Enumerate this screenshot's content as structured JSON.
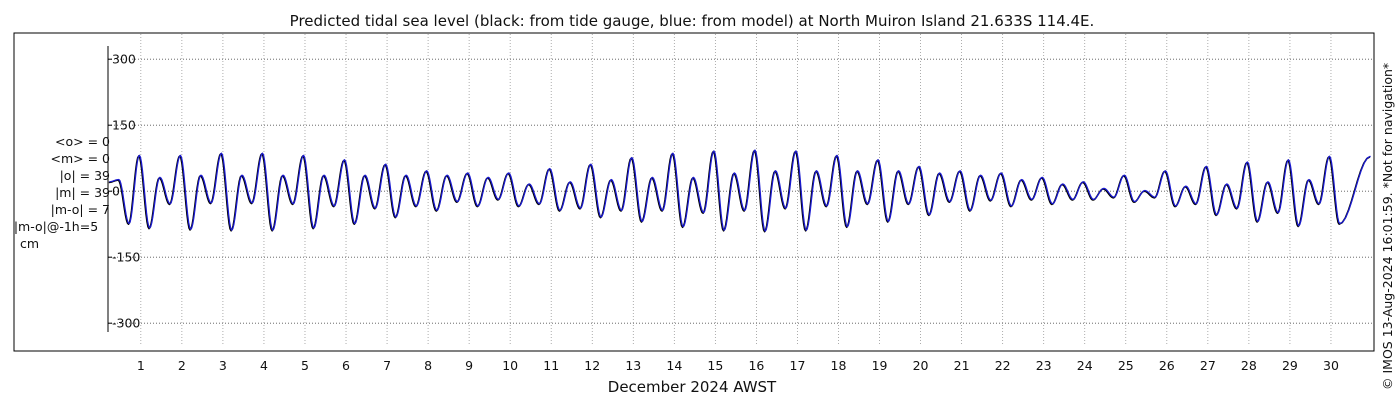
{
  "chart_data": {
    "type": "line",
    "title": "Predicted tidal sea level (black: from tide gauge, blue: from model) at North Muiron Island 21.633S 114.4E.",
    "xlabel": "December 2024 AWST",
    "ylabel": "",
    "ylim": [
      -320,
      330
    ],
    "xlim": [
      0.2,
      31.0
    ],
    "yticks": [
      -300,
      -150,
      0,
      150,
      300
    ],
    "ytick_labels": [
      "-300",
      "-150",
      "0",
      "150",
      "300"
    ],
    "xticks": [
      1,
      2,
      3,
      4,
      5,
      6,
      7,
      8,
      9,
      10,
      11,
      12,
      13,
      14,
      15,
      16,
      17,
      18,
      19,
      20,
      21,
      22,
      23,
      24,
      25,
      26,
      27,
      28,
      29,
      30
    ],
    "xtick_labels": [
      "1",
      "2",
      "3",
      "4",
      "5",
      "6",
      "7",
      "8",
      "9",
      "10",
      "11",
      "12",
      "13",
      "14",
      "15",
      "16",
      "17",
      "18",
      "19",
      "20",
      "21",
      "22",
      "23",
      "24",
      "25",
      "26",
      "27",
      "28",
      "29",
      "30"
    ],
    "grid": true,
    "units": "cm",
    "series": [
      {
        "name": "from tide gauge",
        "color": "#000000",
        "tide_cycles": [
          {
            "day": 0.45,
            "h1": 25,
            "l1": -75,
            "h2": 80,
            "l2": -85
          },
          {
            "day": 1.45,
            "h1": 30,
            "l1": -30,
            "h2": 80,
            "l2": -88
          },
          {
            "day": 2.45,
            "h1": 35,
            "l1": -28,
            "h2": 85,
            "l2": -90
          },
          {
            "day": 3.45,
            "h1": 35,
            "l1": -28,
            "h2": 85,
            "l2": -90
          },
          {
            "day": 4.45,
            "h1": 35,
            "l1": -30,
            "h2": 80,
            "l2": -85
          },
          {
            "day": 5.45,
            "h1": 35,
            "l1": -35,
            "h2": 70,
            "l2": -75
          },
          {
            "day": 6.45,
            "h1": 35,
            "l1": -40,
            "h2": 60,
            "l2": -60
          },
          {
            "day": 7.45,
            "h1": 35,
            "l1": -35,
            "h2": 45,
            "l2": -45
          },
          {
            "day": 8.45,
            "h1": 35,
            "l1": -25,
            "h2": 40,
            "l2": -35
          },
          {
            "day": 9.45,
            "h1": 30,
            "l1": -20,
            "h2": 40,
            "l2": -35
          },
          {
            "day": 10.45,
            "h1": 15,
            "l1": -30,
            "h2": 50,
            "l2": -45
          },
          {
            "day": 11.45,
            "h1": 20,
            "l1": -40,
            "h2": 60,
            "l2": -60
          },
          {
            "day": 12.45,
            "h1": 25,
            "l1": -45,
            "h2": 75,
            "l2": -70
          },
          {
            "day": 13.45,
            "h1": 30,
            "l1": -45,
            "h2": 85,
            "l2": -82
          },
          {
            "day": 14.45,
            "h1": 30,
            "l1": -50,
            "h2": 90,
            "l2": -90
          },
          {
            "day": 15.45,
            "h1": 40,
            "l1": -45,
            "h2": 92,
            "l2": -92
          },
          {
            "day": 16.45,
            "h1": 45,
            "l1": -40,
            "h2": 90,
            "l2": -90
          },
          {
            "day": 17.45,
            "h1": 45,
            "l1": -35,
            "h2": 80,
            "l2": -82
          },
          {
            "day": 18.45,
            "h1": 45,
            "l1": -30,
            "h2": 70,
            "l2": -70
          },
          {
            "day": 19.45,
            "h1": 45,
            "l1": -30,
            "h2": 55,
            "l2": -55
          },
          {
            "day": 20.45,
            "h1": 40,
            "l1": -25,
            "h2": 45,
            "l2": -45
          },
          {
            "day": 21.45,
            "h1": 35,
            "l1": -22,
            "h2": 40,
            "l2": -35
          },
          {
            "day": 22.45,
            "h1": 25,
            "l1": -20,
            "h2": 30,
            "l2": -30
          },
          {
            "day": 23.45,
            "h1": 15,
            "l1": -20,
            "h2": 20,
            "l2": -20
          },
          {
            "day": 24.45,
            "h1": 5,
            "l1": -15,
            "h2": 35,
            "l2": -25
          },
          {
            "day": 25.45,
            "h1": 0,
            "l1": -15,
            "h2": 45,
            "l2": -35
          },
          {
            "day": 26.45,
            "h1": 10,
            "l1": -30,
            "h2": 55,
            "l2": -55
          },
          {
            "day": 27.45,
            "h1": 15,
            "l1": -40,
            "h2": 65,
            "l2": -70
          },
          {
            "day": 28.45,
            "h1": 20,
            "l1": -50,
            "h2": 70,
            "l2": -80
          },
          {
            "day": 29.45,
            "h1": 25,
            "l1": -30,
            "h2": 78,
            "l2": -75
          }
        ]
      },
      {
        "name": "from model",
        "color": "#1a1ad0"
      }
    ]
  },
  "stats": [
    {
      "text": "<o> = 0",
      "align": "r"
    },
    {
      "text": "<m> = 0",
      "align": "r"
    },
    {
      "text": "|o| = 39",
      "align": "r"
    },
    {
      "text": "|m| = 39",
      "align": "r"
    },
    {
      "text": "|m-o| = 7",
      "align": "r"
    },
    {
      "text": "|m-o|@-1h=5",
      "align": "c"
    },
    {
      "text": "cm",
      "align": "l"
    }
  ],
  "credit": "© IMOS 13-Aug-2024 16:01:59. *Not for navigation*"
}
